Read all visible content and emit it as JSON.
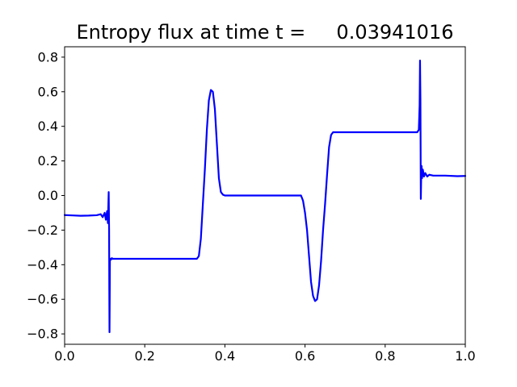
{
  "chart_data": {
    "type": "line",
    "title": "Entropy flux at time t =     0.03941016",
    "xlabel": "",
    "ylabel": "",
    "xlim": [
      0.0,
      1.0
    ],
    "ylim": [
      -0.86,
      0.86
    ],
    "xticks": [
      0.0,
      0.2,
      0.4,
      0.6,
      0.8,
      1.0
    ],
    "xtick_labels": [
      "0.0",
      "0.2",
      "0.4",
      "0.6",
      "0.8",
      "1.0"
    ],
    "yticks": [
      -0.8,
      -0.6,
      -0.4,
      -0.2,
      0.0,
      0.2,
      0.4,
      0.6,
      0.8
    ],
    "ytick_labels": [
      "−0.8",
      "−0.6",
      "−0.4",
      "−0.2",
      "0.0",
      "0.2",
      "0.4",
      "0.6",
      "0.8"
    ],
    "grid": false,
    "series": [
      {
        "name": "entropy flux",
        "color": "#0000ff",
        "x": [
          0.0,
          0.02,
          0.04,
          0.06,
          0.08,
          0.09,
          0.095,
          0.1,
          0.103,
          0.106,
          0.108,
          0.11,
          0.111,
          0.1115,
          0.112,
          0.1125,
          0.113,
          0.114,
          0.116,
          0.118,
          0.12,
          0.2,
          0.3,
          0.33,
          0.335,
          0.34,
          0.345,
          0.35,
          0.355,
          0.36,
          0.365,
          0.37,
          0.375,
          0.38,
          0.385,
          0.39,
          0.395,
          0.4,
          0.41,
          0.45,
          0.5,
          0.55,
          0.59,
          0.595,
          0.6,
          0.605,
          0.61,
          0.615,
          0.62,
          0.625,
          0.63,
          0.635,
          0.64,
          0.645,
          0.65,
          0.655,
          0.66,
          0.665,
          0.67,
          0.7,
          0.75,
          0.8,
          0.85,
          0.88,
          0.884,
          0.886,
          0.887,
          0.888,
          0.889,
          0.89,
          0.891,
          0.892,
          0.894,
          0.897,
          0.9,
          0.905,
          0.91,
          0.92,
          0.95,
          0.98,
          1.0
        ],
        "y": [
          -0.113,
          -0.115,
          -0.117,
          -0.116,
          -0.114,
          -0.108,
          -0.125,
          -0.1,
          -0.14,
          -0.09,
          -0.16,
          0.02,
          -0.2,
          -0.55,
          -0.79,
          -0.6,
          -0.38,
          -0.365,
          -0.37,
          -0.362,
          -0.366,
          -0.366,
          -0.366,
          -0.366,
          -0.35,
          -0.25,
          -0.05,
          0.15,
          0.38,
          0.55,
          0.61,
          0.6,
          0.5,
          0.3,
          0.1,
          0.02,
          0.005,
          0.0,
          0.0,
          0.0,
          0.0,
          0.0,
          0.0,
          -0.03,
          -0.1,
          -0.2,
          -0.35,
          -0.5,
          -0.58,
          -0.61,
          -0.6,
          -0.52,
          -0.38,
          -0.2,
          -0.05,
          0.12,
          0.28,
          0.35,
          0.366,
          0.366,
          0.366,
          0.366,
          0.366,
          0.366,
          0.38,
          0.52,
          0.78,
          0.55,
          -0.02,
          0.12,
          0.17,
          0.1,
          0.15,
          0.11,
          0.13,
          0.11,
          0.12,
          0.115,
          0.115,
          0.112,
          0.113
        ]
      }
    ]
  }
}
